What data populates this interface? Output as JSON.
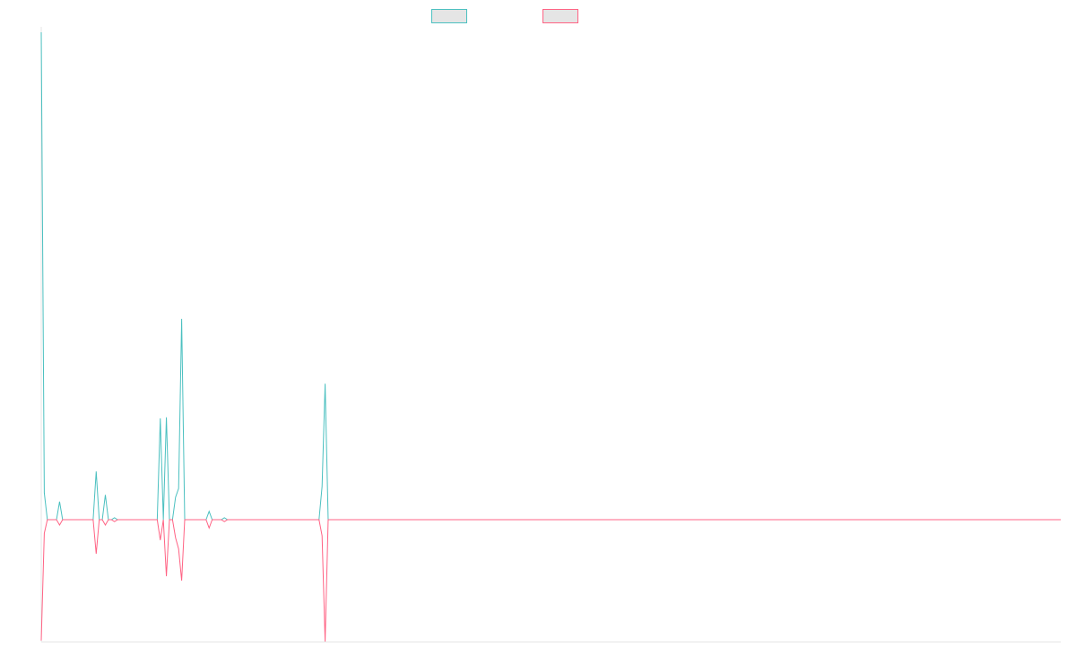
{
  "chart_data": {
    "type": "line",
    "title": "",
    "xlabel": "",
    "ylabel": "",
    "n_points": 335,
    "default_value": 0,
    "ylim": [
      -25,
      100
    ],
    "grid": false,
    "legend_position": "top-center",
    "series": [
      {
        "name": "",
        "color": "#4bc0c0",
        "legend_fill": "#e5e5e5",
        "nonzero_values": {
          "0": 100,
          "1": 5.5,
          "6": 3.7,
          "18": 9.9,
          "21": 5.1,
          "24": 0.4,
          "39": 20.8,
          "41": 21.0,
          "44": 4.6,
          "45": 6.4,
          "46": 41.2,
          "55": 1.7,
          "60": 0.4,
          "92": 6.8,
          "93": 27.9
        }
      },
      {
        "name": "",
        "color": "#ff6384",
        "legend_fill": "#e5e5e5",
        "nonzero_values": {
          "0": -24.8,
          "1": -2.8,
          "6": -1.1,
          "18": -7.0,
          "21": -1.1,
          "24": -0.4,
          "39": -4.2,
          "41": -11.6,
          "44": -3.7,
          "45": -6.0,
          "46": -12.5,
          "55": -1.7,
          "60": -0.4,
          "92": -3.3,
          "93": -25
        }
      }
    ]
  }
}
